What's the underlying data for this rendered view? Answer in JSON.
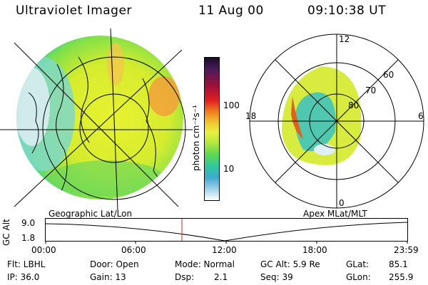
{
  "header": {
    "title": "Ultraviolet Imager",
    "date": "11 Aug 00",
    "time": "09:10:38 UT"
  },
  "colorbar": {
    "label": "photon cm⁻²s⁻¹",
    "ticks": [
      "100",
      "10"
    ]
  },
  "polar_labels": {
    "top": "12",
    "bottom": "0",
    "left": "18",
    "right": "6",
    "lat60": "60",
    "lat70": "70",
    "lat80": "80"
  },
  "timeline": {
    "left_caption": "Geographic Lat/Lon",
    "right_caption": "Apex MLat/MLT",
    "y_axis_label": "GC Alt",
    "y_max": "9.0",
    "y_min": "1.8",
    "x_ticks": [
      "00:00",
      "06:00",
      "12:00",
      "18:00",
      "23:59"
    ]
  },
  "info": {
    "filter_label": "Flt: LBHL",
    "ip_label": "IP: 36.0",
    "door_label": "Door: Open",
    "gain_label": "Gain: 13",
    "mode_label": "Mode: Normal",
    "dsp_label": "Dsp:",
    "dsp_value": "2.1",
    "gcalt_label": "GC Alt: 5.9 Re",
    "seq_label": "Seq: 39",
    "glat_label": "GLat:",
    "glat_value": "85.1",
    "glon_label": "GLon:",
    "glon_value": "255.9"
  }
}
